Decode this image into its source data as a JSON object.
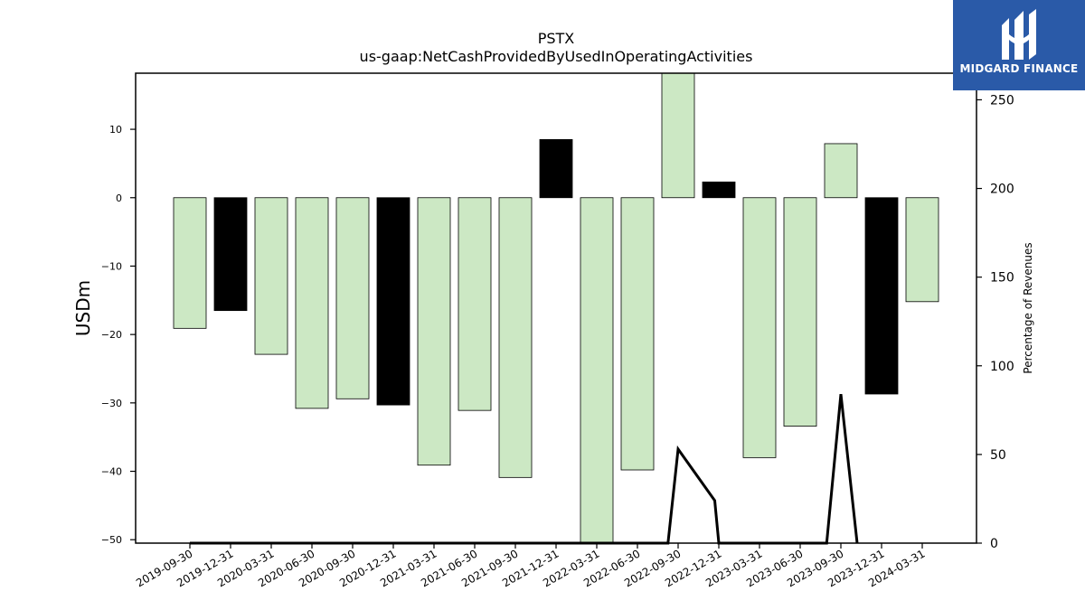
{
  "chart_data": {
    "type": "bar",
    "title": "PSTX",
    "subtitle": "us-gaap:NetCashProvidedByUsedInOperatingActivities",
    "ylabel": "USDm",
    "y2label": "Percentage of Revenues",
    "ylim": [
      -50.5,
      18.2
    ],
    "y2lim": [
      0,
      265
    ],
    "yticks": [
      -50,
      -40,
      -30,
      -20,
      -10,
      0,
      10
    ],
    "y2ticks": [
      0,
      50,
      100,
      150,
      200,
      250
    ],
    "categories": [
      "2019-09-30",
      "2019-12-31",
      "2020-03-31",
      "2020-06-30",
      "2020-09-30",
      "2020-12-31",
      "2021-03-31",
      "2021-06-30",
      "2021-09-30",
      "2021-12-31",
      "2022-03-31",
      "2022-06-30",
      "2022-09-30",
      "2022-12-31",
      "2023-03-31",
      "2023-06-30",
      "2023-09-30",
      "2023-12-31",
      "2024-03-31"
    ],
    "values": [
      -19.1,
      -16.5,
      -22.9,
      -30.8,
      -29.4,
      -30.3,
      -39.1,
      -31.1,
      -40.9,
      8.5,
      -52,
      -39.8,
      21,
      2.3,
      -38,
      -33.4,
      7.9,
      -28.7,
      -15.2
    ],
    "bar_colors": [
      "#cce8c4",
      "#000000",
      "#cce8c4",
      "#cce8c4",
      "#cce8c4",
      "#000000",
      "#cce8c4",
      "#cce8c4",
      "#cce8c4",
      "#000000",
      "#cce8c4",
      "#cce8c4",
      "#cce8c4",
      "#000000",
      "#cce8c4",
      "#cce8c4",
      "#cce8c4",
      "#000000",
      "#cce8c4"
    ],
    "line_series": {
      "x_index": [
        0,
        1,
        2,
        3,
        4,
        5,
        6,
        7,
        8,
        8.8,
        11.75,
        12,
        12.9,
        13,
        15.65,
        16,
        16.4
      ],
      "values": [
        0,
        0,
        0,
        0,
        0,
        0,
        0,
        0,
        0,
        0,
        0,
        53,
        24,
        0,
        0,
        84,
        0
      ]
    }
  },
  "logo": {
    "text": "MIDGARD FINANCE",
    "color": "#2a5aa8"
  }
}
